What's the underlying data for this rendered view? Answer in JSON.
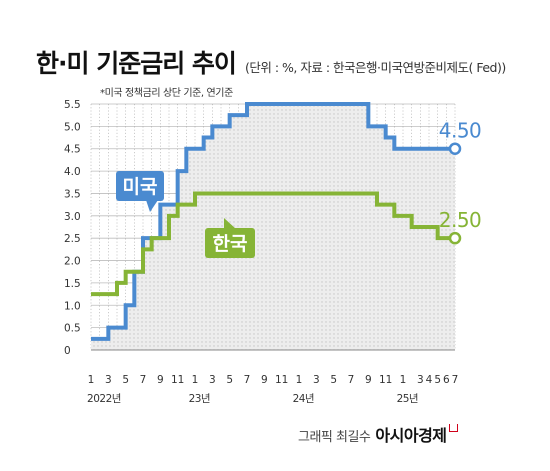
{
  "title": "한·미 기준금리 추이",
  "subtitle": "(단위 : %, 자료 : 한국은행·미국연방준비제도( Fed))",
  "credit": {
    "label": "그래픽 최길수",
    "brand": "아시아경제"
  },
  "chart_data": {
    "type": "line",
    "title": "한·미 기준금리 추이",
    "note": "*미국 정책금리 상단 기준, 연기준",
    "ylabel": "",
    "xlabel": "",
    "ylim": [
      0,
      5.5
    ],
    "yticks": [
      0,
      0.5,
      1.0,
      1.5,
      2.0,
      2.5,
      3.0,
      3.5,
      4.0,
      4.5,
      5.0,
      5.5
    ],
    "ytick_labels": [
      "0",
      "0.5",
      "1.0",
      "1.5",
      "2.0",
      "2.5",
      "3.0",
      "3.5",
      "4.0",
      "4.5",
      "5.0",
      "5.5"
    ],
    "x_tick_labels": [
      "1",
      "3",
      "5",
      "7",
      "9",
      "11",
      "1",
      "3",
      "5",
      "7",
      "9",
      "11",
      "1",
      "3",
      "5",
      "7",
      "9",
      "11",
      "1",
      "3",
      "4",
      "5",
      "6",
      "7"
    ],
    "x_tick_months": [
      0,
      2,
      4,
      6,
      8,
      10,
      12,
      14,
      16,
      18,
      20,
      22,
      24,
      26,
      28,
      30,
      32,
      34,
      36,
      38,
      39,
      40,
      41,
      42
    ],
    "year_labels": [
      {
        "label": "2022년",
        "month": 1.5
      },
      {
        "label": "23년",
        "month": 12.5
      },
      {
        "label": "24년",
        "month": 24.5
      },
      {
        "label": "25년",
        "month": 36.5
      }
    ],
    "grid": true,
    "x_start": "2022-01",
    "series": [
      {
        "name": "미국",
        "color": "#4a8ad0",
        "end_label": "4.50",
        "steps": [
          {
            "month": 0,
            "value": 0.25
          },
          {
            "month": 2,
            "value": 0.5
          },
          {
            "month": 4,
            "value": 1.0
          },
          {
            "month": 5,
            "value": 1.75
          },
          {
            "month": 6,
            "value": 2.5
          },
          {
            "month": 8,
            "value": 3.25
          },
          {
            "month": 10,
            "value": 4.0
          },
          {
            "month": 11,
            "value": 4.5
          },
          {
            "month": 13,
            "value": 4.75
          },
          {
            "month": 14,
            "value": 5.0
          },
          {
            "month": 16,
            "value": 5.25
          },
          {
            "month": 18,
            "value": 5.5
          },
          {
            "month": 32,
            "value": 5.0
          },
          {
            "month": 34,
            "value": 4.75
          },
          {
            "month": 35,
            "value": 4.5
          },
          {
            "month": 42,
            "value": 4.5
          }
        ]
      },
      {
        "name": "한국",
        "color": "#86b436",
        "end_label": "2.50",
        "steps": [
          {
            "month": 0,
            "value": 1.25
          },
          {
            "month": 3,
            "value": 1.5
          },
          {
            "month": 4,
            "value": 1.75
          },
          {
            "month": 6,
            "value": 2.25
          },
          {
            "month": 7,
            "value": 2.5
          },
          {
            "month": 9,
            "value": 3.0
          },
          {
            "month": 10,
            "value": 3.25
          },
          {
            "month": 12,
            "value": 3.5
          },
          {
            "month": 33,
            "value": 3.25
          },
          {
            "month": 35,
            "value": 3.0
          },
          {
            "month": 37,
            "value": 2.75
          },
          {
            "month": 40,
            "value": 2.5
          },
          {
            "month": 42,
            "value": 2.5
          }
        ]
      }
    ]
  }
}
